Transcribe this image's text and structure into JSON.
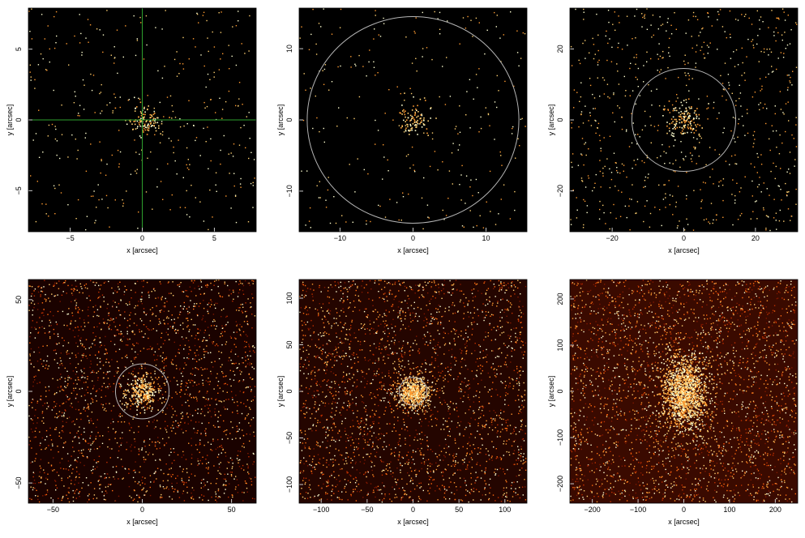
{
  "chart_data": [
    {
      "type": "image",
      "xlim": [
        -7.9,
        7.9
      ],
      "ylim": [
        -7.9,
        7.9
      ],
      "xticks": [
        {
          "value": -5,
          "label": "−5"
        },
        0,
        5
      ],
      "yticks": [
        {
          "value": -5,
          "label": "−5"
        },
        0,
        5
      ],
      "xlabel": "x [arcsec]",
      "ylabel": "y [arcsec]",
      "crosshair": [
        0,
        0
      ],
      "crosshair_color": "#2ea02e"
    },
    {
      "type": "image",
      "xlim": [
        -15.6,
        15.6
      ],
      "ylim": [
        -15.7,
        15.7
      ],
      "xticks": [
        {
          "value": -10,
          "label": "−10"
        },
        0,
        10
      ],
      "yticks": [
        {
          "value": -10,
          "label": "−10"
        },
        0,
        10
      ],
      "xlabel": "x [arcsec]",
      "ylabel": "y [arcsec]",
      "circle": {
        "center": [
          0,
          0
        ],
        "radius": 14.5,
        "color": "#b4b4b4"
      }
    },
    {
      "type": "image",
      "xlim": [
        -31.8,
        31.8
      ],
      "ylim": [
        -31.5,
        31.5
      ],
      "xticks": [
        {
          "value": -20,
          "label": "−20"
        },
        0,
        20
      ],
      "yticks": [
        {
          "value": -20,
          "label": "−20"
        },
        0,
        20
      ],
      "xlabel": "x [arcsec]",
      "ylabel": "y [arcsec]",
      "circle": {
        "center": [
          0,
          0
        ],
        "radius": 14.5,
        "color": "#b4b4b4"
      }
    },
    {
      "type": "image",
      "xlim": [
        -63.8,
        63.8
      ],
      "ylim": [
        -61,
        61
      ],
      "xticks": [
        {
          "value": -50,
          "label": "−50"
        },
        0,
        50
      ],
      "yticks": [
        {
          "value": -50,
          "label": "−50"
        },
        0,
        50
      ],
      "xlabel": "x [arcsec]",
      "ylabel": "y [arcsec]",
      "circle": {
        "center": [
          0,
          0
        ],
        "radius": 15,
        "color": "#b4b4b4"
      }
    },
    {
      "type": "image",
      "xlim": [
        -124,
        124
      ],
      "ylim": [
        -120,
        120
      ],
      "xticks": [
        {
          "value": -100,
          "label": "−100"
        },
        {
          "value": -50,
          "label": "−50"
        },
        0,
        50,
        100
      ],
      "yticks": [
        {
          "value": -100,
          "label": "−100"
        },
        {
          "value": -50,
          "label": "−50"
        },
        0,
        50,
        100
      ],
      "xlabel": "x [arcsec]",
      "ylabel": "y [arcsec]",
      "circle": {
        "center": [
          0,
          0
        ],
        "radius": 15,
        "color": "#b4b4b4"
      }
    },
    {
      "type": "image",
      "xlim": [
        -249,
        249
      ],
      "ylim": [
        -242,
        242
      ],
      "xticks": [
        {
          "value": -200,
          "label": "−200"
        },
        {
          "value": -100,
          "label": "−100"
        },
        0,
        100,
        200
      ],
      "yticks": [
        {
          "value": -200,
          "label": "−200"
        },
        {
          "value": -100,
          "label": "−100"
        },
        0,
        100,
        200
      ],
      "xlabel": "x [arcsec]",
      "ylabel": "y [arcsec]"
    }
  ]
}
